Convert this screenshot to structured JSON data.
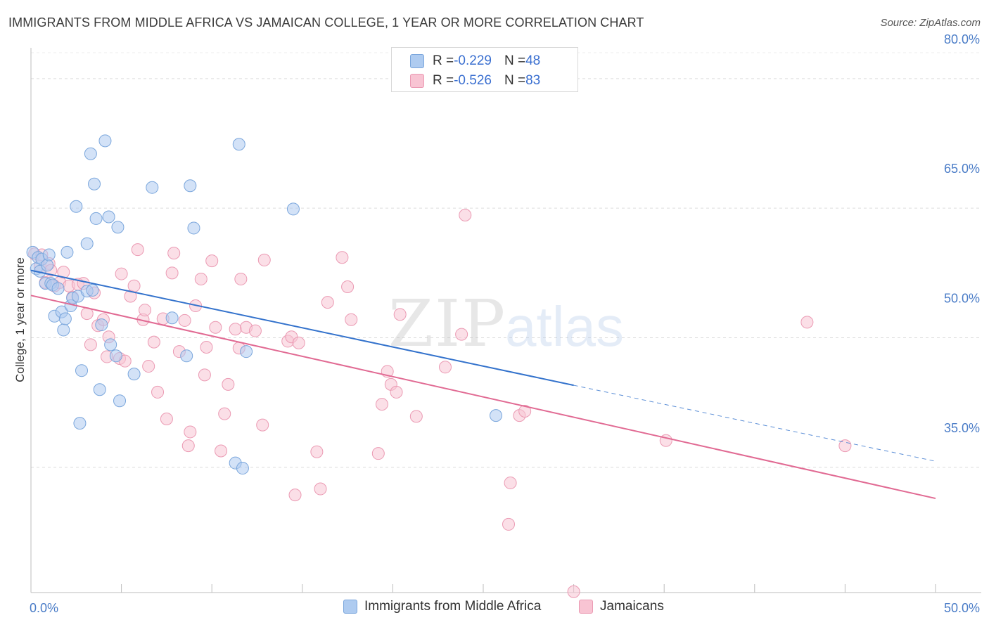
{
  "header": {
    "title": "IMMIGRANTS FROM MIDDLE AFRICA VS JAMAICAN COLLEGE, 1 YEAR OR MORE CORRELATION CHART",
    "source": "Source: ZipAtlas.com"
  },
  "watermark": {
    "zip": "ZIP",
    "atlas": "atlas"
  },
  "legend": {
    "rows": [
      {
        "r_label": "R = ",
        "r_value": "-0.229",
        "n_label": "N = ",
        "n_value": "48"
      },
      {
        "r_label": "R = ",
        "r_value": "-0.526",
        "n_label": "N = ",
        "n_value": "83"
      }
    ]
  },
  "bottom_legend": {
    "series1": "Immigrants from Middle Africa",
    "series2": "Jamaicans"
  },
  "colors": {
    "blue_fill": "#aecbf0",
    "blue_stroke": "#7aa6dc",
    "blue_line": "#3372cc",
    "pink_fill": "#f8c4d3",
    "pink_stroke": "#eb9ab3",
    "pink_line": "#e16a93",
    "tick_text": "#4a7cc7"
  },
  "chart_data": {
    "type": "scatter",
    "title": "IMMIGRANTS FROM MIDDLE AFRICA VS JAMAICAN COLLEGE, 1 YEAR OR MORE CORRELATION CHART",
    "xlabel": "",
    "ylabel": "College, 1 year or more",
    "xlim": [
      0,
      50
    ],
    "ylim": [
      20.5,
      83
    ],
    "x_tick_labels": [
      "0.0%",
      "50.0%"
    ],
    "y_ticks": [
      35,
      50,
      65,
      80
    ],
    "y_tick_labels": [
      "35.0%",
      "50.0%",
      "65.0%",
      "80.0%"
    ],
    "grid": true,
    "legend_position": "top-center",
    "series": [
      {
        "name": "Immigrants from Middle Africa",
        "color": "blue",
        "points": [
          [
            0.1,
            59.9
          ],
          [
            0.3,
            58.0
          ],
          [
            0.4,
            59.3
          ],
          [
            0.5,
            57.7
          ],
          [
            0.6,
            59.1
          ],
          [
            0.8,
            56.3
          ],
          [
            0.9,
            58.4
          ],
          [
            1.0,
            59.6
          ],
          [
            1.1,
            56.3
          ],
          [
            1.2,
            56.1
          ],
          [
            1.3,
            52.5
          ],
          [
            1.5,
            55.7
          ],
          [
            1.7,
            53.0
          ],
          [
            1.8,
            50.9
          ],
          [
            1.9,
            52.2
          ],
          [
            2.0,
            59.9
          ],
          [
            2.2,
            53.7
          ],
          [
            2.3,
            54.6
          ],
          [
            2.5,
            65.2
          ],
          [
            2.6,
            54.8
          ],
          [
            2.7,
            40.1
          ],
          [
            2.8,
            46.2
          ],
          [
            3.1,
            55.4
          ],
          [
            3.1,
            60.9
          ],
          [
            3.3,
            71.3
          ],
          [
            3.4,
            55.5
          ],
          [
            3.5,
            67.8
          ],
          [
            3.6,
            63.8
          ],
          [
            3.8,
            44.0
          ],
          [
            3.9,
            51.5
          ],
          [
            4.1,
            72.8
          ],
          [
            4.3,
            64.0
          ],
          [
            4.4,
            49.2
          ],
          [
            4.7,
            47.9
          ],
          [
            4.8,
            62.8
          ],
          [
            4.9,
            42.7
          ],
          [
            5.7,
            45.8
          ],
          [
            6.7,
            67.4
          ],
          [
            7.8,
            52.3
          ],
          [
            8.6,
            47.9
          ],
          [
            8.8,
            67.6
          ],
          [
            9.0,
            62.7
          ],
          [
            11.3,
            35.5
          ],
          [
            11.5,
            72.4
          ],
          [
            11.7,
            34.9
          ],
          [
            11.9,
            48.4
          ],
          [
            14.5,
            64.9
          ],
          [
            25.7,
            41.0
          ]
        ],
        "trend": {
          "x0": 0,
          "y0": 57.8,
          "x1": 30,
          "y1": 44.5,
          "x_dash_end": 50,
          "y_dash_end": 35.7
        }
      },
      {
        "name": "Jamaicans",
        "color": "pink",
        "points": [
          [
            0.2,
            59.7
          ],
          [
            0.5,
            58.3
          ],
          [
            0.6,
            59.6
          ],
          [
            0.8,
            56.4
          ],
          [
            1.0,
            58.6
          ],
          [
            1.1,
            57.8
          ],
          [
            1.3,
            56.0
          ],
          [
            1.6,
            56.4
          ],
          [
            1.8,
            57.6
          ],
          [
            2.1,
            56.0
          ],
          [
            2.3,
            54.7
          ],
          [
            2.6,
            56.2
          ],
          [
            2.9,
            56.3
          ],
          [
            3.1,
            52.8
          ],
          [
            3.3,
            49.2
          ],
          [
            3.5,
            55.2
          ],
          [
            3.7,
            51.4
          ],
          [
            4.0,
            52.1
          ],
          [
            4.2,
            47.8
          ],
          [
            4.3,
            50.1
          ],
          [
            4.9,
            47.6
          ],
          [
            5.0,
            57.4
          ],
          [
            5.2,
            47.3
          ],
          [
            5.5,
            54.8
          ],
          [
            5.7,
            56.0
          ],
          [
            5.9,
            60.2
          ],
          [
            6.2,
            52.1
          ],
          [
            6.3,
            53.2
          ],
          [
            6.5,
            46.7
          ],
          [
            6.8,
            49.5
          ],
          [
            7.0,
            43.7
          ],
          [
            7.3,
            52.2
          ],
          [
            7.5,
            40.6
          ],
          [
            7.8,
            57.5
          ],
          [
            7.9,
            59.8
          ],
          [
            8.2,
            48.4
          ],
          [
            8.5,
            52.0
          ],
          [
            8.7,
            37.5
          ],
          [
            8.8,
            39.1
          ],
          [
            9.1,
            53.7
          ],
          [
            9.4,
            56.8
          ],
          [
            9.6,
            45.7
          ],
          [
            9.7,
            48.9
          ],
          [
            10.0,
            58.9
          ],
          [
            10.2,
            51.2
          ],
          [
            10.5,
            36.9
          ],
          [
            10.7,
            41.2
          ],
          [
            10.9,
            44.6
          ],
          [
            11.3,
            51.0
          ],
          [
            11.5,
            48.8
          ],
          [
            11.6,
            56.8
          ],
          [
            11.9,
            51.2
          ],
          [
            12.4,
            50.8
          ],
          [
            12.8,
            39.9
          ],
          [
            12.9,
            59.0
          ],
          [
            14.2,
            49.6
          ],
          [
            14.4,
            50.1
          ],
          [
            14.6,
            31.8
          ],
          [
            14.8,
            49.4
          ],
          [
            15.8,
            36.8
          ],
          [
            16.0,
            32.5
          ],
          [
            16.4,
            54.1
          ],
          [
            17.2,
            59.3
          ],
          [
            17.5,
            55.9
          ],
          [
            17.7,
            52.1
          ],
          [
            19.2,
            36.6
          ],
          [
            19.4,
            42.3
          ],
          [
            19.7,
            46.1
          ],
          [
            19.9,
            44.6
          ],
          [
            20.2,
            43.7
          ],
          [
            20.4,
            52.7
          ],
          [
            21.3,
            40.9
          ],
          [
            22.9,
            46.6
          ],
          [
            23.8,
            50.4
          ],
          [
            24.0,
            64.2
          ],
          [
            26.5,
            33.2
          ],
          [
            26.4,
            28.4
          ],
          [
            27.0,
            41.0
          ],
          [
            27.3,
            41.5
          ],
          [
            30.0,
            20.6
          ],
          [
            35.1,
            38.1
          ],
          [
            42.9,
            51.8
          ],
          [
            45.0,
            37.5
          ]
        ],
        "trend": {
          "x0": 0,
          "y0": 54.9,
          "x1": 50,
          "y1": 31.4
        }
      }
    ]
  }
}
